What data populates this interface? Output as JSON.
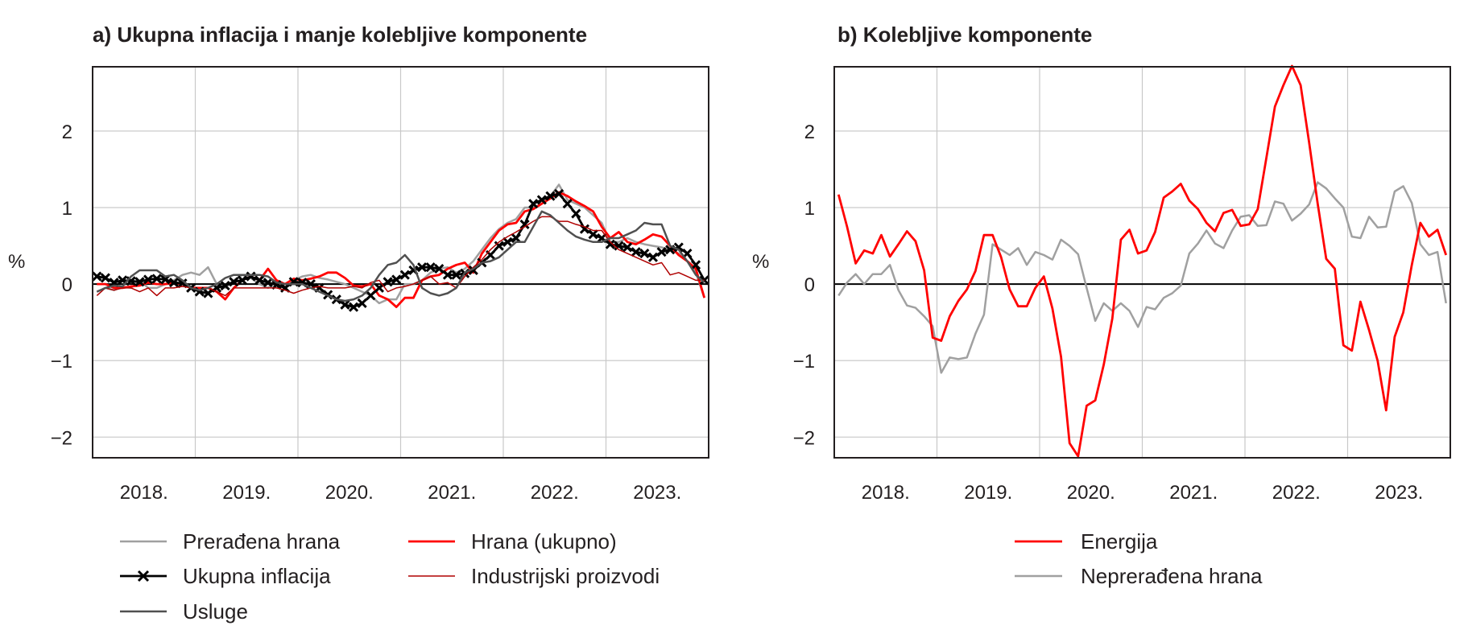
{
  "chart_data": [
    {
      "type": "line",
      "title": "a) Ukupna inflacija i manje kolebljive komponente",
      "ylabel": "%",
      "xlabel": "",
      "ylim": [
        -2.27,
        2.84
      ],
      "yticks": [
        2,
        1,
        0,
        -1,
        -2
      ],
      "ytick_labels": [
        "2",
        "1",
        "0",
        "−1",
        "−2"
      ],
      "xlim": [
        2018,
        2024
      ],
      "xtick_labels": [
        "2018.",
        "2019.",
        "2020.",
        "2021.",
        "2022.",
        "2023."
      ],
      "grid": true,
      "frequency": "monthly",
      "series": [
        {
          "name": "Prerađena hrana",
          "color": "#a0a0a0",
          "width": 2.5,
          "markers": false,
          "values": [
            -0.1,
            -0.05,
            -0.08,
            -0.03,
            -0.05,
            0.05,
            -0.05,
            -0.05,
            0.0,
            0.05,
            0.12,
            0.15,
            0.12,
            0.22,
            0.0,
            -0.05,
            0.05,
            0.12,
            0.08,
            0.0,
            -0.05,
            0.05,
            -0.05,
            0.05,
            0.1,
            0.12,
            0.08,
            0.06,
            0.03,
            0.0,
            -0.05,
            -0.1,
            -0.15,
            -0.25,
            -0.2,
            -0.2,
            0.0,
            0.0,
            0.05,
            0.15,
            0.2,
            0.22,
            0.15,
            0.2,
            0.3,
            0.45,
            0.6,
            0.72,
            0.8,
            0.85,
            1.0,
            1.0,
            1.05,
            1.15,
            1.3,
            1.1,
            1.05,
            1.0,
            0.9,
            0.8,
            0.55,
            0.55,
            0.6,
            0.55,
            0.52,
            0.5,
            0.48,
            0.45,
            0.4,
            0.3,
            0.15,
            -0.18
          ]
        },
        {
          "name": "Hrana (ukupno)",
          "color": "#ff0000",
          "width": 2.8,
          "markers": false,
          "values": [
            0.0,
            0.0,
            -0.05,
            -0.05,
            -0.03,
            -0.02,
            0.02,
            0.0,
            0.0,
            0.02,
            0.0,
            -0.05,
            -0.05,
            -0.05,
            -0.1,
            -0.2,
            -0.05,
            0.05,
            0.1,
            0.05,
            0.2,
            0.05,
            0.0,
            0.07,
            0.05,
            0.07,
            0.1,
            0.15,
            0.15,
            0.08,
            -0.02,
            -0.03,
            0.0,
            -0.15,
            -0.2,
            -0.3,
            -0.18,
            -0.18,
            0.05,
            0.1,
            0.12,
            0.2,
            0.25,
            0.28,
            0.15,
            0.4,
            0.55,
            0.7,
            0.78,
            0.8,
            0.95,
            0.98,
            1.05,
            1.12,
            1.2,
            1.15,
            1.08,
            1.02,
            0.95,
            0.75,
            0.6,
            0.68,
            0.55,
            0.52,
            0.58,
            0.65,
            0.62,
            0.5,
            0.38,
            0.3,
            0.2,
            -0.18
          ]
        },
        {
          "name": "Ukupna inflacija",
          "color": "#000000",
          "width": 2.8,
          "markers": true,
          "values": [
            0.1,
            0.08,
            0.02,
            0.05,
            0.04,
            0.03,
            0.06,
            0.07,
            0.06,
            0.02,
            0.01,
            -0.05,
            -0.1,
            -0.12,
            -0.05,
            -0.02,
            0.03,
            0.05,
            0.1,
            0.05,
            0.02,
            -0.01,
            -0.05,
            0.03,
            0.02,
            0.0,
            -0.05,
            -0.14,
            -0.2,
            -0.27,
            -0.3,
            -0.25,
            -0.15,
            -0.05,
            0.03,
            0.06,
            0.12,
            0.18,
            0.22,
            0.22,
            0.2,
            0.12,
            0.12,
            0.14,
            0.18,
            0.28,
            0.38,
            0.5,
            0.55,
            0.6,
            0.78,
            1.05,
            1.1,
            1.15,
            1.18,
            1.05,
            0.92,
            0.72,
            0.65,
            0.6,
            0.52,
            0.5,
            0.48,
            0.42,
            0.4,
            0.35,
            0.42,
            0.45,
            0.48,
            0.4,
            0.25,
            0.05
          ]
        },
        {
          "name": "Industrijski proizvodi",
          "color": "#b00000",
          "width": 1.5,
          "markers": false,
          "values": [
            -0.15,
            -0.05,
            -0.08,
            -0.05,
            -0.05,
            -0.1,
            -0.05,
            -0.15,
            -0.05,
            -0.05,
            -0.03,
            -0.05,
            -0.08,
            -0.05,
            -0.1,
            -0.15,
            -0.05,
            -0.05,
            -0.05,
            -0.05,
            -0.05,
            -0.05,
            -0.08,
            -0.12,
            -0.08,
            -0.05,
            -0.03,
            -0.05,
            -0.05,
            -0.05,
            -0.03,
            -0.05,
            0.02,
            0.05,
            -0.1,
            -0.05,
            -0.03,
            0.0,
            0.05,
            0.1,
            0.0,
            0.02,
            -0.05,
            0.1,
            0.22,
            0.32,
            0.45,
            0.55,
            0.62,
            0.68,
            0.75,
            0.82,
            0.88,
            0.88,
            0.82,
            0.82,
            0.78,
            0.75,
            0.7,
            0.7,
            0.55,
            0.45,
            0.4,
            0.35,
            0.3,
            0.25,
            0.28,
            0.12,
            0.15,
            0.1,
            0.05,
            0.05
          ]
        },
        {
          "name": "Usluge",
          "color": "#505050",
          "width": 2.5,
          "markers": false,
          "values": [
            -0.1,
            -0.05,
            -0.02,
            -0.03,
            0.1,
            0.18,
            0.18,
            0.18,
            0.1,
            0.12,
            0.05,
            -0.05,
            -0.08,
            -0.05,
            0.0,
            0.08,
            0.12,
            0.12,
            0.12,
            0.12,
            0.1,
            0.02,
            0.0,
            0.0,
            0.0,
            -0.05,
            -0.1,
            -0.15,
            -0.2,
            -0.22,
            -0.2,
            -0.15,
            -0.05,
            0.12,
            0.25,
            0.28,
            0.38,
            0.25,
            -0.05,
            -0.12,
            -0.15,
            -0.12,
            -0.05,
            0.15,
            0.2,
            0.28,
            0.3,
            0.35,
            0.45,
            0.55,
            0.55,
            0.75,
            0.95,
            0.9,
            0.8,
            0.7,
            0.62,
            0.58,
            0.55,
            0.55,
            0.6,
            0.6,
            0.65,
            0.7,
            0.8,
            0.78,
            0.78,
            0.5,
            0.45,
            0.3,
            0.12,
            0.02
          ]
        }
      ],
      "legend": [
        {
          "label": "Prerađena hrana",
          "series": 0
        },
        {
          "label": "Hrana (ukupno)",
          "series": 1
        },
        {
          "label": "Ukupna inflacija",
          "series": 2
        },
        {
          "label": "Industrijski proizvodi",
          "series": 3
        },
        {
          "label": "Usluge",
          "series": 4
        }
      ],
      "legend_placement": "bottom"
    },
    {
      "type": "line",
      "title": "b) Kolebljive komponente",
      "ylabel": "%",
      "xlabel": "",
      "ylim": [
        -2.27,
        2.84
      ],
      "yticks": [
        2,
        1,
        0,
        -1,
        -2
      ],
      "ytick_labels": [
        "2",
        "1",
        "0",
        "−1",
        "−2"
      ],
      "xlim": [
        2018,
        2024
      ],
      "xtick_labels": [
        "2018.",
        "2019.",
        "2020.",
        "2021.",
        "2022.",
        "2023."
      ],
      "grid": true,
      "frequency": "monthly",
      "series": [
        {
          "name": "Neprerađena hrana",
          "color": "#a0a0a0",
          "width": 2.5,
          "markers": false,
          "values": [
            -0.15,
            0.02,
            0.13,
            0.0,
            0.13,
            0.13,
            0.25,
            -0.08,
            -0.28,
            -0.31,
            -0.42,
            -0.55,
            -1.16,
            -0.96,
            -0.98,
            -0.96,
            -0.65,
            -0.4,
            0.52,
            0.45,
            0.38,
            0.47,
            0.25,
            0.42,
            0.38,
            0.32,
            0.58,
            0.5,
            0.39,
            -0.05,
            -0.48,
            -0.25,
            -0.35,
            -0.25,
            -0.35,
            -0.56,
            -0.3,
            -0.33,
            -0.18,
            -0.12,
            -0.02,
            0.4,
            0.53,
            0.7,
            0.53,
            0.47,
            0.7,
            0.88,
            0.9,
            0.76,
            0.77,
            1.08,
            1.05,
            0.83,
            0.92,
            1.04,
            1.33,
            1.25,
            1.12,
            1.0,
            0.62,
            0.6,
            0.88,
            0.74,
            0.75,
            1.21,
            1.28,
            1.06,
            0.52,
            0.38,
            0.42,
            -0.25
          ]
        },
        {
          "name": "Energija",
          "color": "#ff0000",
          "width": 2.8,
          "markers": false,
          "values": [
            1.17,
            0.75,
            0.27,
            0.44,
            0.4,
            0.64,
            0.36,
            0.52,
            0.69,
            0.56,
            0.18,
            -0.7,
            -0.74,
            -0.42,
            -0.22,
            -0.07,
            0.17,
            0.64,
            0.64,
            0.35,
            -0.07,
            -0.29,
            -0.29,
            -0.05,
            0.1,
            -0.32,
            -0.95,
            -2.08,
            -2.25,
            -1.59,
            -1.52,
            -1.05,
            -0.45,
            0.58,
            0.71,
            0.4,
            0.44,
            0.68,
            1.13,
            1.21,
            1.31,
            1.09,
            0.98,
            0.8,
            0.69,
            0.93,
            0.97,
            0.76,
            0.78,
            0.98,
            1.65,
            2.32,
            2.6,
            2.85,
            2.6,
            1.85,
            1.05,
            0.33,
            0.2,
            -0.8,
            -0.87,
            -0.23,
            -0.6,
            -1.0,
            -1.65,
            -0.69,
            -0.37,
            0.25,
            0.8,
            0.62,
            0.71,
            0.38
          ]
        }
      ],
      "legend": [
        {
          "label": "Energija",
          "series": 1
        },
        {
          "label": "Neprerađena hrana",
          "series": 0
        }
      ],
      "legend_placement": "bottom"
    }
  ]
}
